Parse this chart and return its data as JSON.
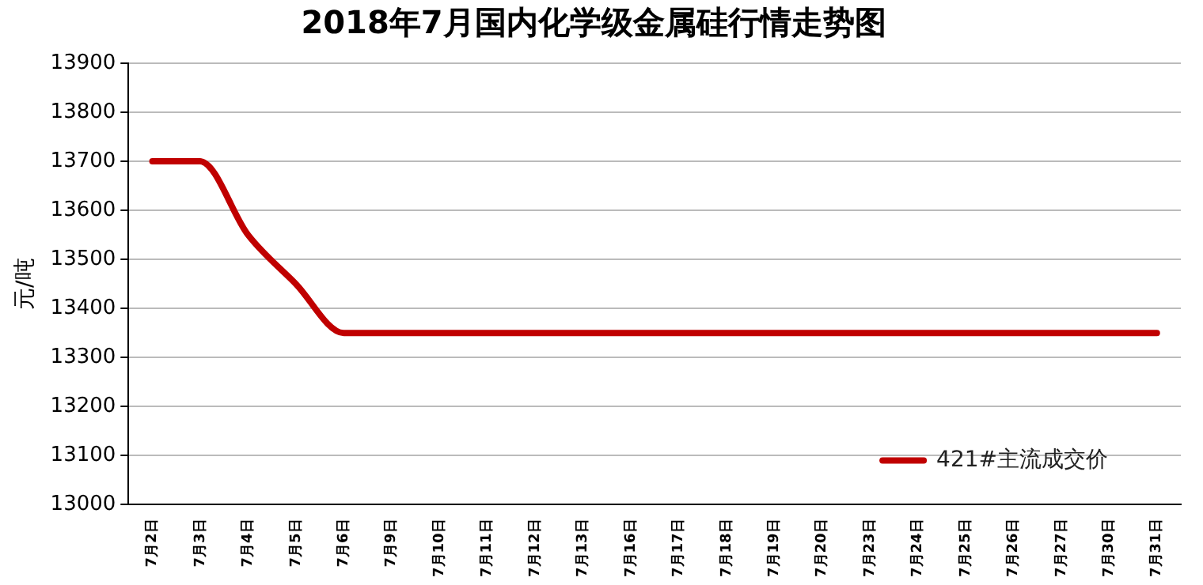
{
  "chart_data": {
    "type": "line",
    "title": "2018年7月国内化学级金属硅行情走势图",
    "ylabel": "元/吨",
    "categories": [
      "7月2日",
      "7月3日",
      "7月4日",
      "7月5日",
      "7月6日",
      "7月9日",
      "7月10日",
      "7月11日",
      "7月12日",
      "7月13日",
      "7月16日",
      "7月17日",
      "7月18日",
      "7月19日",
      "7月20日",
      "7月23日",
      "7月24日",
      "7月25日",
      "7月26日",
      "7月27日",
      "7月30日",
      "7月31日"
    ],
    "series": [
      {
        "name": "421#主流成交价",
        "color": "#c00000",
        "values": [
          13700,
          13700,
          13550,
          13450,
          13350,
          13350,
          13350,
          13350,
          13350,
          13350,
          13350,
          13350,
          13350,
          13350,
          13350,
          13350,
          13350,
          13350,
          13350,
          13350,
          13350,
          13350
        ]
      }
    ],
    "ylim": [
      13000,
      13900
    ],
    "yticks": [
      13000,
      13100,
      13200,
      13300,
      13400,
      13500,
      13600,
      13700,
      13800,
      13900
    ],
    "grid": "y",
    "legend": "bottom right",
    "marker": "none",
    "line_style": "solid"
  }
}
